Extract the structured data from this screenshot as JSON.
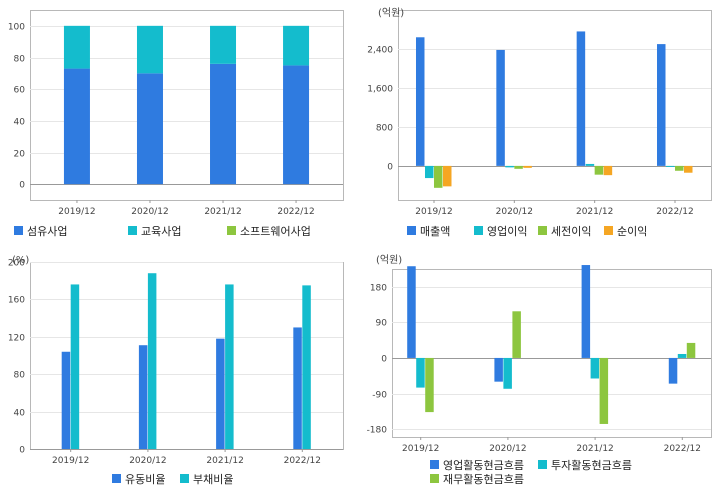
{
  "chart_data": [
    {
      "type": "bar",
      "stacked": true,
      "unit": "",
      "categories": [
        "2019/12",
        "2020/12",
        "2021/12",
        "2022/12"
      ],
      "series": [
        {
          "name": "섬유사업",
          "color": "#2f7be0",
          "values": [
            73,
            70,
            76,
            75
          ]
        },
        {
          "name": "교육사업",
          "color": "#14bccd",
          "values": [
            27,
            30,
            24,
            25
          ]
        },
        {
          "name": "소프트웨어사업",
          "color": "#8dc63f",
          "values": [
            0,
            0,
            0,
            0
          ]
        }
      ],
      "ylim": [
        -10,
        110
      ],
      "yticks": [
        {
          "v": 0,
          "t": "0"
        },
        {
          "v": 20,
          "t": "20"
        },
        {
          "v": 40,
          "t": "40"
        },
        {
          "v": 60,
          "t": "60"
        },
        {
          "v": 80,
          "t": "80"
        },
        {
          "v": 100,
          "t": "100"
        }
      ],
      "legend_position": "bottom"
    },
    {
      "type": "bar",
      "stacked": false,
      "unit": "(억원)",
      "categories": [
        "2019/12",
        "2020/12",
        "2021/12",
        "2022/12"
      ],
      "series": [
        {
          "name": "매출액",
          "color": "#2f7be0",
          "values": [
            2640,
            2380,
            2760,
            2500
          ]
        },
        {
          "name": "영업이익",
          "color": "#14bccd",
          "values": [
            -250,
            -30,
            40,
            -20
          ]
        },
        {
          "name": "세전이익",
          "color": "#8dc63f",
          "values": [
            -450,
            -60,
            -180,
            -100
          ]
        },
        {
          "name": "순이익",
          "color": "#f5a623",
          "values": [
            -420,
            -40,
            -190,
            -140
          ]
        }
      ],
      "ylim": [
        -700,
        3200
      ],
      "yticks": [
        {
          "v": 0,
          "t": "0"
        },
        {
          "v": 800,
          "t": "800"
        },
        {
          "v": 1600,
          "t": "1,600"
        },
        {
          "v": 2400,
          "t": "2,400"
        }
      ],
      "legend_position": "bottom"
    },
    {
      "type": "bar",
      "stacked": false,
      "unit": "(%)",
      "categories": [
        "2019/12",
        "2020/12",
        "2021/12",
        "2022/12"
      ],
      "series": [
        {
          "name": "유동비율",
          "color": "#2f7be0",
          "values": [
            104,
            111,
            118,
            130
          ]
        },
        {
          "name": "부채비율",
          "color": "#14bccd",
          "values": [
            176,
            188,
            176,
            175
          ]
        }
      ],
      "ylim": [
        0,
        200
      ],
      "yticks": [
        {
          "v": 0,
          "t": "0"
        },
        {
          "v": 40,
          "t": "40"
        },
        {
          "v": 80,
          "t": "80"
        },
        {
          "v": 120,
          "t": "120"
        },
        {
          "v": 160,
          "t": "160"
        },
        {
          "v": 200,
          "t": "200"
        }
      ],
      "legend_position": "bottom"
    },
    {
      "type": "bar",
      "stacked": false,
      "unit": "(억원)",
      "categories": [
        "2019/12",
        "2020/12",
        "2021/12",
        "2022/12"
      ],
      "series": [
        {
          "name": "영업활동현금흐름",
          "color": "#2f7be0",
          "values": [
            232,
            -60,
            235,
            -65
          ]
        },
        {
          "name": "투자활동현금흐름",
          "color": "#14bccd",
          "values": [
            -75,
            -78,
            -52,
            10
          ]
        },
        {
          "name": "재무활동현금흐름",
          "color": "#8dc63f",
          "values": [
            -137,
            118,
            -167,
            38
          ]
        }
      ],
      "ylim": [
        -200,
        225
      ],
      "yticks": [
        {
          "v": -180,
          "t": "-180"
        },
        {
          "v": -90,
          "t": "-90"
        },
        {
          "v": 0,
          "t": "0"
        },
        {
          "v": 90,
          "t": "90"
        },
        {
          "v": 180,
          "t": "180"
        }
      ],
      "legend_position": "bottom"
    }
  ]
}
